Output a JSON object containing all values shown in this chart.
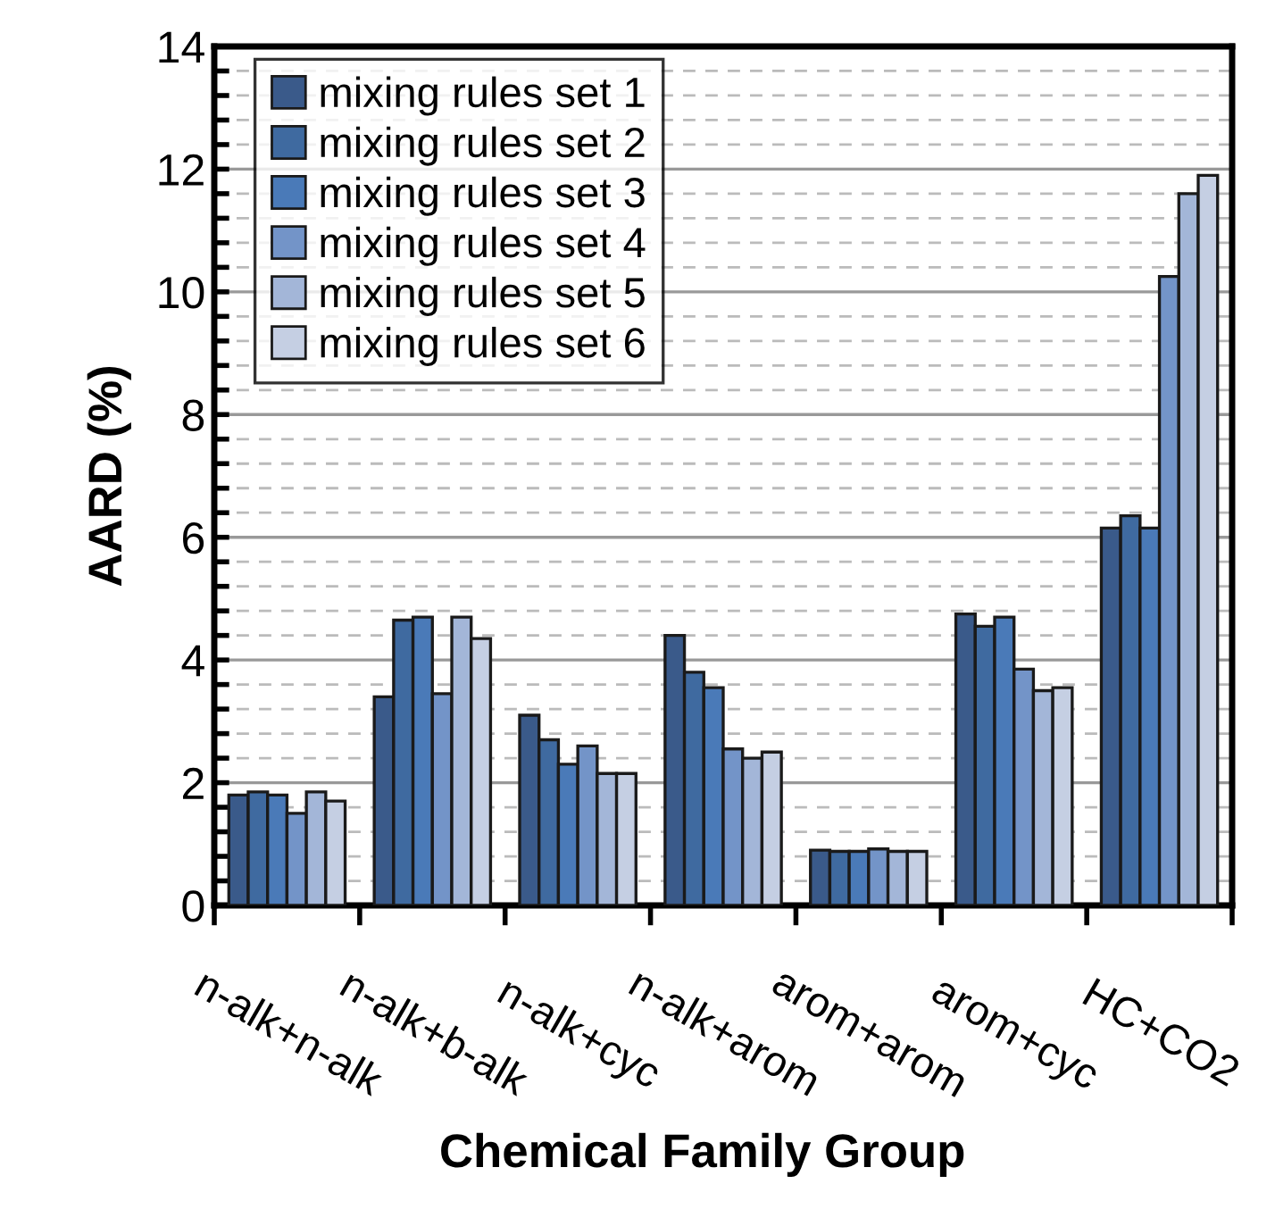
{
  "chart_data": {
    "type": "bar",
    "xlabel": "Chemical Family Group",
    "ylabel": "AARD (%)",
    "categories": [
      "n-alk+n-alk",
      "n-alk+b-alk",
      "n-alk+cyc",
      "n-alk+arom",
      "arom+arom",
      "arom+cyc",
      "HC+CO2"
    ],
    "series": [
      {
        "name": "mixing rules set 1",
        "color": "#3a5a8a",
        "values": [
          1.8,
          3.4,
          3.1,
          4.4,
          0.9,
          4.75,
          6.15
        ]
      },
      {
        "name": "mixing rules set 2",
        "color": "#3f6aa0",
        "values": [
          1.85,
          4.65,
          2.7,
          3.8,
          0.88,
          4.55,
          6.35
        ]
      },
      {
        "name": "mixing rules set 3",
        "color": "#4a7ab8",
        "values": [
          1.8,
          4.7,
          2.3,
          3.55,
          0.88,
          4.7,
          6.15
        ]
      },
      {
        "name": "mixing rules set 4",
        "color": "#7394c8",
        "values": [
          1.5,
          3.45,
          2.6,
          2.55,
          0.92,
          3.85,
          10.25
        ]
      },
      {
        "name": "mixing rules set 5",
        "color": "#a3b6d8",
        "values": [
          1.85,
          4.7,
          2.15,
          2.4,
          0.88,
          3.5,
          11.6
        ]
      },
      {
        "name": "mixing rules set 6",
        "color": "#c5cfe3",
        "values": [
          1.7,
          4.35,
          2.15,
          2.5,
          0.88,
          3.55,
          11.9
        ]
      }
    ],
    "ylim": [
      0,
      14
    ],
    "yticks": [
      0,
      {
        "value": 0.4,
        "label": null
      },
      {
        "value": 0.8,
        "label": null
      },
      {
        "value": 1.2,
        "label": null
      },
      {
        "value": 1.6,
        "label": null
      },
      2,
      {
        "value": 2.4,
        "label": null
      },
      {
        "value": 2.8,
        "label": null
      },
      {
        "value": 3.2,
        "label": null
      },
      {
        "value": 3.6,
        "label": null
      },
      4,
      {
        "value": 4.4,
        "label": null
      },
      {
        "value": 4.8,
        "label": null
      },
      {
        "value": 5.2,
        "label": null
      },
      {
        "value": 5.6,
        "label": null
      },
      6,
      {
        "value": 6.4,
        "label": null
      },
      {
        "value": 6.8,
        "label": null
      },
      {
        "value": 7.2,
        "label": null
      },
      {
        "value": 7.6,
        "label": null
      },
      8,
      {
        "value": 8.4,
        "label": null
      },
      {
        "value": 8.8,
        "label": null
      },
      {
        "value": 9.2,
        "label": null
      },
      {
        "value": 9.6,
        "label": null
      },
      10,
      {
        "value": 10.4,
        "label": null
      },
      {
        "value": 10.8,
        "label": null
      },
      {
        "value": 11.2,
        "label": null
      },
      {
        "value": 11.6,
        "label": null
      },
      12,
      {
        "value": 12.4,
        "label": null
      },
      {
        "value": 12.8,
        "label": null
      },
      {
        "value": 13.2,
        "label": null
      },
      {
        "value": 13.6,
        "label": null
      },
      14
    ],
    "grid": "y",
    "legend": "top left"
  }
}
